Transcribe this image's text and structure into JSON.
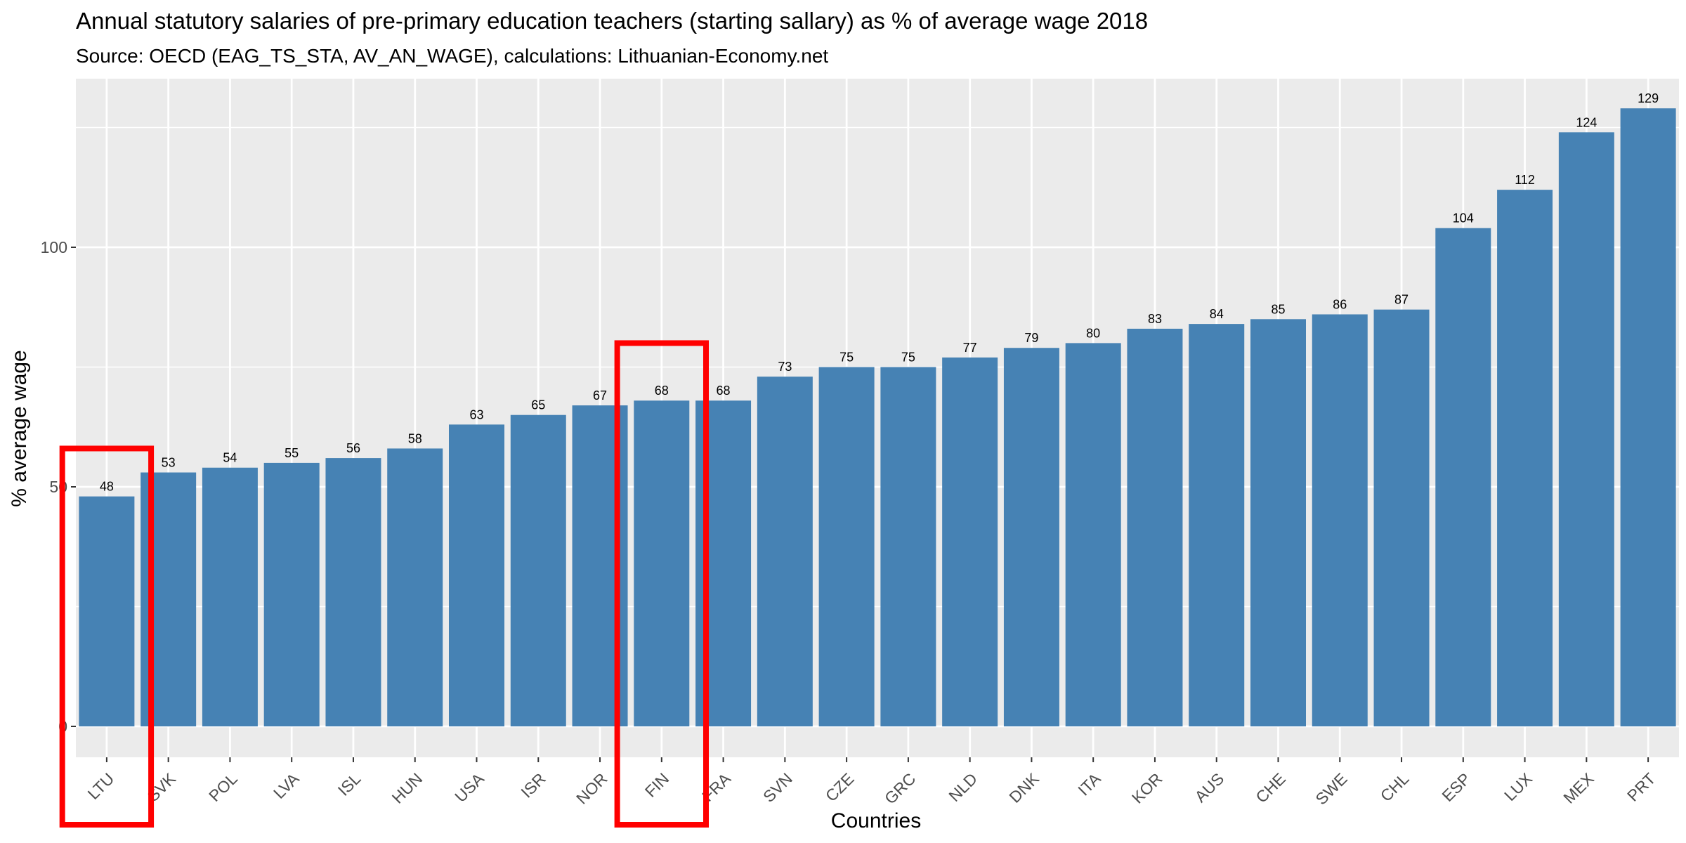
{
  "chart_data": {
    "type": "bar",
    "title": "Annual statutory salaries of pre-primary education teachers (starting sallary) as % of average wage 2018",
    "subtitle": "Source: OECD (EAG_TS_STA, AV_AN_WAGE), calculations: Lithuanian-Economy.net",
    "xlabel": "Countries",
    "ylabel": "% average wage",
    "categories": [
      "LTU",
      "SVK",
      "POL",
      "LVA",
      "ISL",
      "HUN",
      "USA",
      "ISR",
      "NOR",
      "FIN",
      "FRA",
      "SVN",
      "CZE",
      "GRC",
      "NLD",
      "DNK",
      "ITA",
      "KOR",
      "AUS",
      "CHE",
      "SWE",
      "CHL",
      "ESP",
      "LUX",
      "MEX",
      "PRT"
    ],
    "values": [
      48,
      53,
      54,
      55,
      56,
      58,
      63,
      65,
      67,
      68,
      68,
      73,
      75,
      75,
      77,
      79,
      80,
      83,
      84,
      85,
      86,
      87,
      104,
      112,
      124,
      129
    ],
    "data_labels": [
      "48",
      "53",
      "54",
      "55",
      "56",
      "58",
      "63",
      "65",
      "67",
      "68",
      "68",
      "73",
      "75",
      "75",
      "77",
      "79",
      "80",
      "83",
      "84",
      "85",
      "86",
      "87",
      "104",
      "112",
      "124",
      "129"
    ],
    "yticks": [
      0,
      50,
      100
    ],
    "ytick_labels": [
      "0",
      "50",
      "100"
    ],
    "ylim": [
      -6.5,
      135.5
    ],
    "grid": true,
    "legend": "none",
    "highlighted_categories": [
      "LTU",
      "FIN"
    ],
    "colors": {
      "bar": "#4682b4",
      "panel_background": "#ebebeb",
      "grid": "#ffffff",
      "highlight_box": "#ff0000"
    }
  }
}
